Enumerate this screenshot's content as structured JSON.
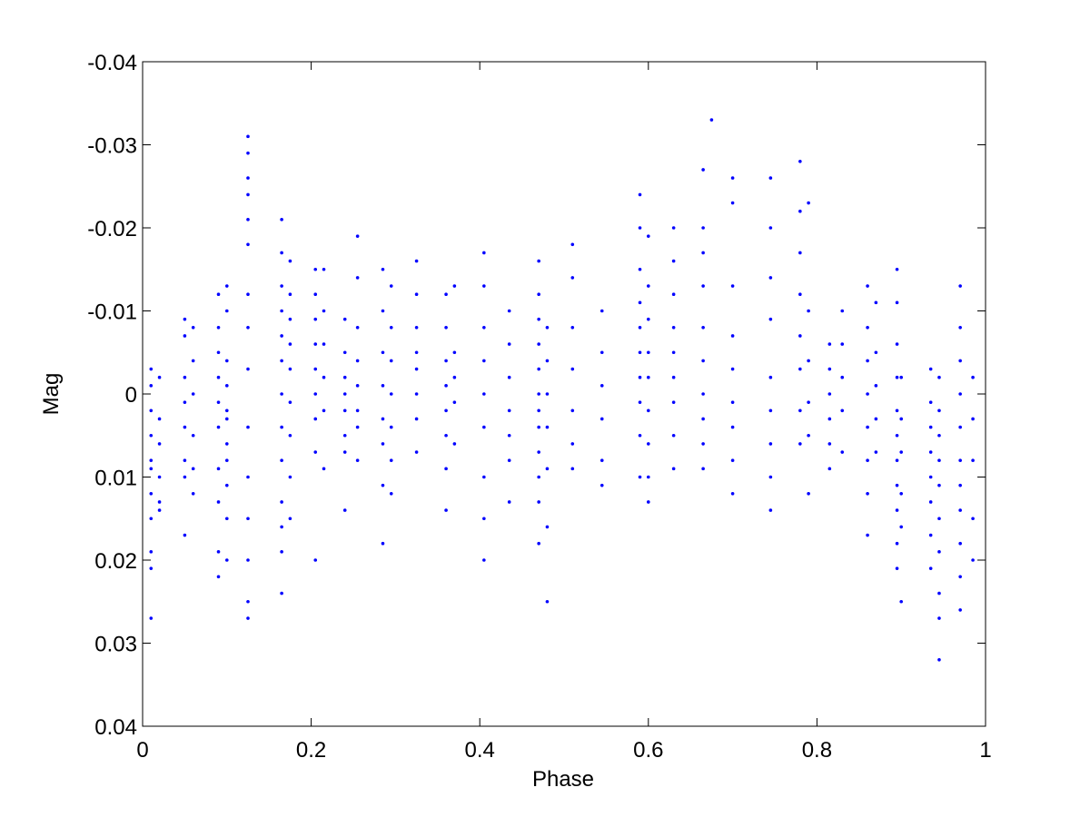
{
  "chart_data": {
    "type": "scatter",
    "x_label": "Phase",
    "y_label": "Mag",
    "color": "#0000ff",
    "xlim": [
      0,
      1
    ],
    "xticks": [
      0,
      0.2,
      0.4,
      0.6,
      0.8,
      1
    ],
    "ylim": [
      0.04,
      -0.04
    ],
    "yticks": [
      -0.04,
      -0.03,
      -0.02,
      -0.01,
      0,
      0.01,
      0.02,
      0.03,
      0.04
    ],
    "x": [
      0.01,
      0.01,
      0.01,
      0.01,
      0.01,
      0.01,
      0.01,
      0.01,
      0.01,
      0.01,
      0.01,
      0.02,
      0.02,
      0.02,
      0.02,
      0.02,
      0.02,
      0.05,
      0.05,
      0.05,
      0.05,
      0.05,
      0.05,
      0.05,
      0.05,
      0.06,
      0.06,
      0.06,
      0.06,
      0.06,
      0.06,
      0.09,
      0.09,
      0.09,
      0.09,
      0.09,
      0.09,
      0.09,
      0.09,
      0.09,
      0.09,
      0.1,
      0.1,
      0.1,
      0.1,
      0.1,
      0.1,
      0.1,
      0.1,
      0.1,
      0.1,
      0.1,
      0.125,
      0.125,
      0.125,
      0.125,
      0.125,
      0.125,
      0.125,
      0.125,
      0.125,
      0.125,
      0.125,
      0.125,
      0.125,
      0.125,
      0.125,
      0.165,
      0.165,
      0.165,
      0.165,
      0.165,
      0.165,
      0.165,
      0.165,
      0.165,
      0.165,
      0.165,
      0.165,
      0.165,
      0.175,
      0.175,
      0.175,
      0.175,
      0.175,
      0.175,
      0.175,
      0.175,
      0.175,
      0.205,
      0.205,
      0.205,
      0.205,
      0.205,
      0.205,
      0.205,
      0.205,
      0.205,
      0.215,
      0.215,
      0.215,
      0.215,
      0.215,
      0.215,
      0.24,
      0.24,
      0.24,
      0.24,
      0.24,
      0.24,
      0.24,
      0.24,
      0.255,
      0.255,
      0.255,
      0.255,
      0.255,
      0.255,
      0.255,
      0.255,
      0.285,
      0.285,
      0.285,
      0.285,
      0.285,
      0.285,
      0.285,
      0.285,
      0.295,
      0.295,
      0.295,
      0.295,
      0.295,
      0.295,
      0.295,
      0.325,
      0.325,
      0.325,
      0.325,
      0.325,
      0.325,
      0.325,
      0.325,
      0.36,
      0.36,
      0.36,
      0.36,
      0.36,
      0.36,
      0.36,
      0.36,
      0.37,
      0.37,
      0.37,
      0.37,
      0.37,
      0.405,
      0.405,
      0.405,
      0.405,
      0.405,
      0.405,
      0.405,
      0.405,
      0.405,
      0.435,
      0.435,
      0.435,
      0.435,
      0.435,
      0.435,
      0.435,
      0.47,
      0.47,
      0.47,
      0.47,
      0.47,
      0.47,
      0.47,
      0.47,
      0.47,
      0.47,
      0.47,
      0.47,
      0.48,
      0.48,
      0.48,
      0.48,
      0.48,
      0.48,
      0.48,
      0.51,
      0.51,
      0.51,
      0.51,
      0.51,
      0.51,
      0.51,
      0.545,
      0.545,
      0.545,
      0.545,
      0.545,
      0.545,
      0.59,
      0.59,
      0.59,
      0.59,
      0.59,
      0.59,
      0.59,
      0.59,
      0.59,
      0.59,
      0.6,
      0.6,
      0.6,
      0.6,
      0.6,
      0.6,
      0.6,
      0.6,
      0.6,
      0.63,
      0.63,
      0.63,
      0.63,
      0.63,
      0.63,
      0.63,
      0.63,
      0.63,
      0.665,
      0.665,
      0.665,
      0.665,
      0.665,
      0.665,
      0.665,
      0.665,
      0.665,
      0.665,
      0.675,
      0.7,
      0.7,
      0.7,
      0.7,
      0.7,
      0.7,
      0.7,
      0.7,
      0.7,
      0.745,
      0.745,
      0.745,
      0.745,
      0.745,
      0.745,
      0.745,
      0.745,
      0.745,
      0.78,
      0.78,
      0.78,
      0.78,
      0.78,
      0.78,
      0.78,
      0.78,
      0.79,
      0.79,
      0.79,
      0.79,
      0.79,
      0.79,
      0.815,
      0.815,
      0.815,
      0.815,
      0.815,
      0.815,
      0.83,
      0.83,
      0.83,
      0.83,
      0.83,
      0.86,
      0.86,
      0.86,
      0.86,
      0.86,
      0.86,
      0.86,
      0.86,
      0.87,
      0.87,
      0.87,
      0.87,
      0.87,
      0.895,
      0.895,
      0.895,
      0.895,
      0.895,
      0.895,
      0.895,
      0.895,
      0.895,
      0.895,
      0.895,
      0.9,
      0.9,
      0.9,
      0.9,
      0.9,
      0.9,
      0.935,
      0.935,
      0.935,
      0.935,
      0.935,
      0.935,
      0.935,
      0.935,
      0.945,
      0.945,
      0.945,
      0.945,
      0.945,
      0.945,
      0.945,
      0.945,
      0.945,
      0.945,
      0.97,
      0.97,
      0.97,
      0.97,
      0.97,
      0.97,
      0.97,
      0.97,
      0.97,
      0.97,
      0.97,
      0.985,
      0.985,
      0.985,
      0.985,
      0.985
    ],
    "values": [
      -0.003,
      -0.001,
      0.002,
      0.005,
      0.008,
      0.009,
      0.012,
      0.015,
      0.019,
      0.021,
      0.027,
      -0.002,
      0.003,
      0.006,
      0.01,
      0.013,
      0.014,
      -0.009,
      -0.007,
      -0.002,
      0.001,
      0.004,
      0.008,
      0.01,
      0.017,
      -0.008,
      -0.004,
      0,
      0.005,
      0.009,
      0.012,
      -0.012,
      -0.008,
      -0.005,
      -0.002,
      0.001,
      0.004,
      0.009,
      0.013,
      0.019,
      0.022,
      -0.013,
      -0.01,
      -0.004,
      -0.001,
      0.002,
      0.003,
      0.006,
      0.008,
      0.011,
      0.015,
      0.02,
      -0.031,
      -0.029,
      -0.026,
      -0.024,
      -0.021,
      -0.018,
      -0.012,
      -0.008,
      -0.003,
      0.004,
      0.01,
      0.015,
      0.02,
      0.025,
      0.027,
      -0.021,
      -0.017,
      -0.013,
      -0.01,
      -0.007,
      -0.004,
      0,
      0.004,
      0.008,
      0.013,
      0.016,
      0.019,
      0.024,
      -0.016,
      -0.012,
      -0.009,
      -0.006,
      -0.003,
      0.001,
      0.005,
      0.01,
      0.015,
      -0.015,
      -0.012,
      -0.009,
      -0.006,
      -0.003,
      0,
      0.003,
      0.007,
      0.02,
      -0.015,
      -0.01,
      -0.006,
      -0.002,
      0.002,
      0.009,
      -0.009,
      -0.005,
      -0.002,
      0,
      0.002,
      0.005,
      0.007,
      0.014,
      -0.019,
      -0.014,
      -0.008,
      -0.004,
      -0.001,
      0.002,
      0.004,
      0.008,
      -0.015,
      -0.01,
      -0.005,
      -0.001,
      0.003,
      0.006,
      0.011,
      0.018,
      -0.013,
      -0.008,
      -0.004,
      0,
      0.004,
      0.008,
      0.012,
      -0.016,
      -0.012,
      -0.008,
      -0.005,
      -0.003,
      0,
      0.003,
      0.007,
      -0.012,
      -0.008,
      -0.004,
      -0.001,
      0.002,
      0.005,
      0.009,
      0.014,
      -0.013,
      -0.005,
      -0.002,
      0.001,
      0.006,
      -0.017,
      -0.013,
      -0.008,
      -0.004,
      0,
      0.004,
      0.01,
      0.015,
      0.02,
      -0.01,
      -0.006,
      -0.002,
      0.002,
      0.005,
      0.008,
      0.013,
      -0.016,
      -0.012,
      -0.009,
      -0.006,
      -0.003,
      0,
      0.002,
      0.004,
      0.007,
      0.01,
      0.013,
      0.018,
      -0.008,
      -0.004,
      0,
      0.004,
      0.009,
      0.016,
      0.025,
      -0.018,
      -0.014,
      -0.008,
      -0.003,
      0.002,
      0.006,
      0.009,
      -0.01,
      -0.005,
      -0.001,
      0.003,
      0.008,
      0.011,
      -0.024,
      -0.02,
      -0.015,
      -0.011,
      -0.008,
      -0.005,
      -0.002,
      0.001,
      0.005,
      0.01,
      -0.019,
      -0.013,
      -0.009,
      -0.005,
      -0.002,
      0.002,
      0.006,
      0.01,
      0.013,
      -0.02,
      -0.016,
      -0.012,
      -0.008,
      -0.005,
      -0.002,
      0.001,
      0.005,
      0.009,
      -0.027,
      -0.02,
      -0.017,
      -0.013,
      -0.008,
      -0.004,
      0,
      0.003,
      0.006,
      0.009,
      -0.033,
      -0.026,
      -0.023,
      -0.013,
      -0.007,
      -0.003,
      0.001,
      0.004,
      0.008,
      0.012,
      -0.026,
      -0.02,
      -0.014,
      -0.009,
      -0.002,
      0.002,
      0.006,
      0.01,
      0.014,
      -0.028,
      -0.022,
      -0.017,
      -0.012,
      -0.007,
      -0.003,
      0.002,
      0.006,
      -0.023,
      -0.01,
      -0.004,
      0.001,
      0.005,
      0.012,
      -0.006,
      -0.003,
      0,
      0.003,
      0.006,
      0.009,
      -0.01,
      -0.006,
      -0.002,
      0.002,
      0.007,
      -0.013,
      -0.008,
      -0.004,
      0,
      0.004,
      0.008,
      0.012,
      0.017,
      -0.011,
      -0.005,
      -0.001,
      0.003,
      0.007,
      -0.015,
      -0.011,
      -0.006,
      -0.002,
      0.002,
      0.005,
      0.008,
      0.011,
      0.014,
      0.018,
      0.021,
      -0.002,
      0.003,
      0.007,
      0.012,
      0.016,
      0.025,
      -0.003,
      0.001,
      0.004,
      0.007,
      0.01,
      0.013,
      0.017,
      0.021,
      -0.002,
      0.002,
      0.005,
      0.008,
      0.011,
      0.015,
      0.019,
      0.024,
      0.027,
      0.032,
      -0.013,
      -0.008,
      -0.004,
      0,
      0.004,
      0.008,
      0.011,
      0.014,
      0.018,
      0.022,
      0.026,
      -0.002,
      0.003,
      0.008,
      0.015,
      0.02
    ]
  }
}
